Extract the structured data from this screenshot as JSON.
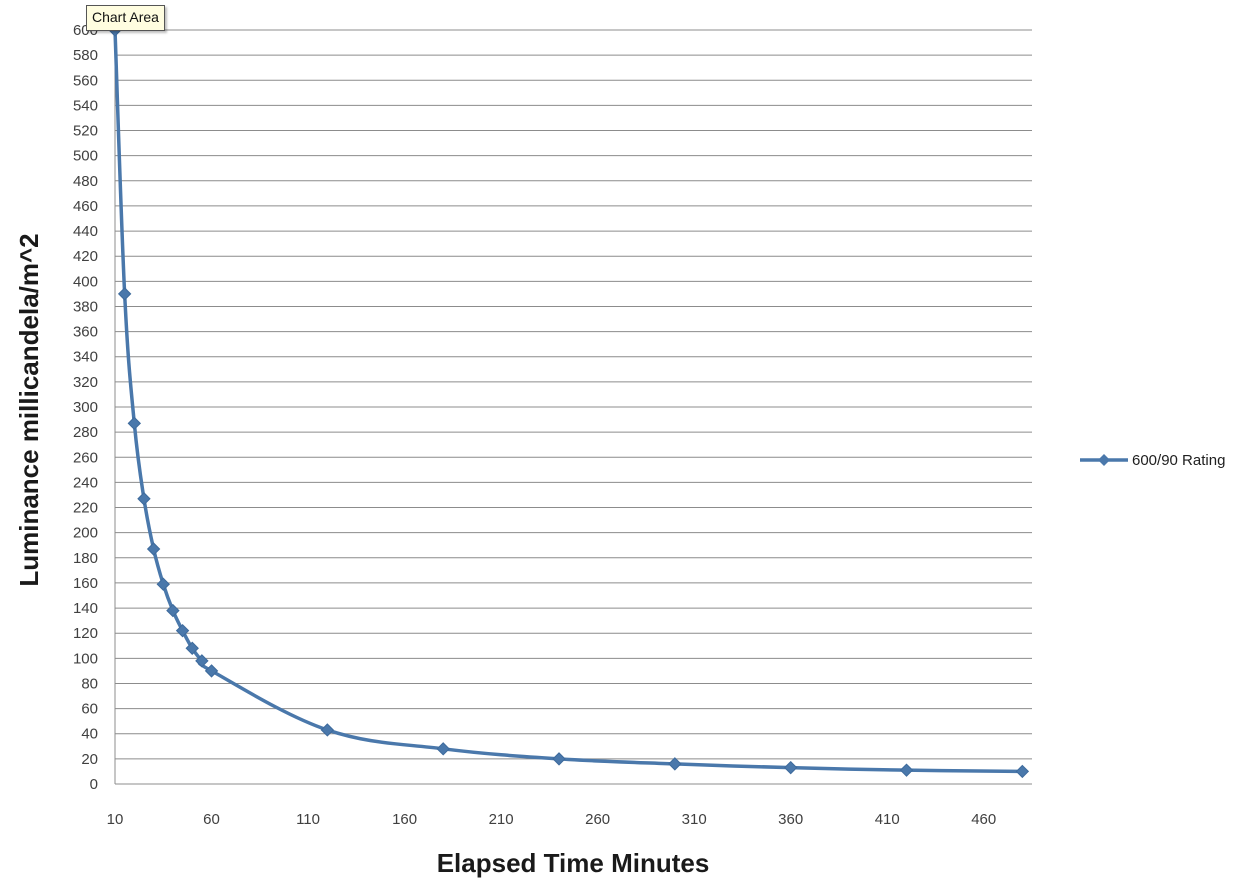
{
  "tooltip": "Chart Area",
  "colors": {
    "series": "#4a78ab",
    "grid": "#8c8c8c",
    "axis": "#8c8c8c",
    "tooltip_bg": "#fffde0"
  },
  "chart_data": {
    "type": "line",
    "title": "",
    "xlabel": "Elapsed Time Minutes",
    "ylabel": "Luminance millicandela/m^2",
    "xlim": [
      10,
      485
    ],
    "ylim": [
      0,
      600
    ],
    "x_ticks": [
      10,
      60,
      110,
      160,
      210,
      260,
      310,
      360,
      410,
      460
    ],
    "y_ticks": [
      0,
      20,
      40,
      60,
      80,
      100,
      120,
      140,
      160,
      180,
      200,
      220,
      240,
      260,
      280,
      300,
      320,
      340,
      360,
      380,
      400,
      420,
      440,
      460,
      480,
      500,
      520,
      540,
      560,
      580,
      600
    ],
    "grid": "horizontal",
    "legend_position": "right",
    "marker": "diamond",
    "smooth": true,
    "series": [
      {
        "name": "600/90 Rating",
        "x": [
          10,
          15,
          20,
          25,
          30,
          35,
          40,
          45,
          50,
          55,
          60,
          120,
          180,
          240,
          300,
          360,
          420,
          480
        ],
        "y": [
          600,
          390,
          287,
          227,
          187,
          159,
          138,
          122,
          108,
          98,
          90,
          43,
          28,
          20,
          16,
          13,
          11,
          10
        ]
      }
    ]
  }
}
